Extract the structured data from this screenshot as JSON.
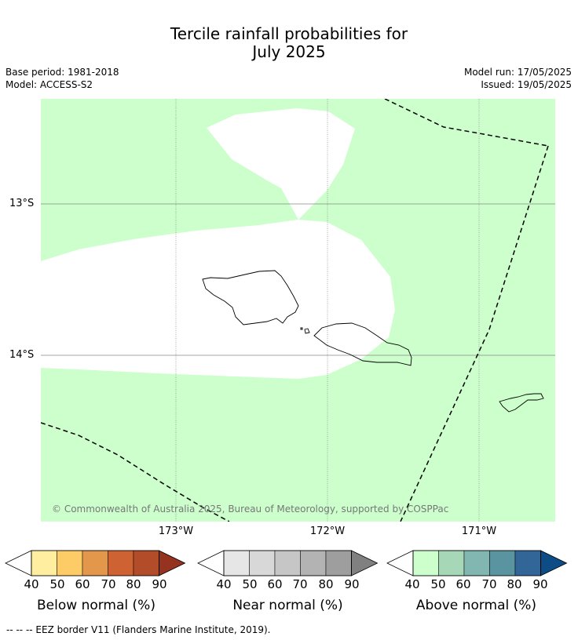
{
  "title": {
    "line1": "Tercile rainfall probabilities for",
    "line2": "July 2025"
  },
  "meta": {
    "base_period": "Base period: 1981-2018",
    "model": "Model: ACCESS-S2",
    "model_run": "Model run: 17/05/2025",
    "issued": "Issued: 19/05/2025"
  },
  "map": {
    "lat_labels": [
      "13°S",
      "14°S"
    ],
    "lon_labels": [
      "173°W",
      "172°W",
      "171°W"
    ],
    "copyright": "© Commonwealth of Australia 2025, Bureau of Meteorology, supported by COSPPac",
    "colors": {
      "above_normal_40_50": "#ccffcc",
      "land_outline": "#000000",
      "eez_border": "#000000",
      "gridline": "#888888"
    }
  },
  "colorbars": [
    {
      "title": "Below normal (%)",
      "ticks": [
        "40",
        "50",
        "60",
        "70",
        "80",
        "90"
      ],
      "colors": [
        "#ffeea0",
        "#fecc66",
        "#e3974a",
        "#cf6232",
        "#b34c28",
        "#953220"
      ]
    },
    {
      "title": "Near normal (%)",
      "ticks": [
        "40",
        "50",
        "60",
        "70",
        "80",
        "90"
      ],
      "colors": [
        "#e6e6e6",
        "#d8d8d8",
        "#c6c6c6",
        "#b3b3b3",
        "#9e9e9e",
        "#808080"
      ]
    },
    {
      "title": "Above normal (%)",
      "ticks": [
        "40",
        "50",
        "60",
        "70",
        "80",
        "90"
      ],
      "colors": [
        "#ccffcc",
        "#a6d7b7",
        "#82b7b1",
        "#5a94a0",
        "#326699",
        "#0e4c86"
      ]
    }
  ],
  "footer": {
    "legend_text": "--  --  -- EEZ border V11 (Flanders Marine Institute, 2019)."
  }
}
